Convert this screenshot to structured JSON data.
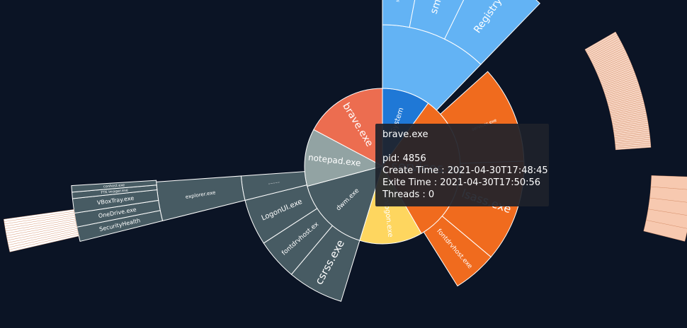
{
  "sunburst": {
    "nodes": [
      {
        "id": "system",
        "label": "System",
        "ring": 0,
        "a0": 0,
        "a1": 36,
        "color": "#1f78d6",
        "font": 10
      },
      {
        "id": "services",
        "label": "services.exe",
        "ring": 0,
        "a0": 36,
        "a1": 150,
        "color": "#f06b1e",
        "font": 18
      },
      {
        "id": "winlogon",
        "label": "winlogon.exe",
        "ring": 0,
        "a0": 150,
        "a1": 197,
        "color": "#fed65f",
        "font": 10
      },
      {
        "id": "dwm",
        "label": "dwm.exe",
        "ring": 0,
        "a0": 197,
        "a1": 255,
        "color": "#475b63",
        "font": 9
      },
      {
        "id": "notepad",
        "label": "notepad.exe",
        "ring": 0,
        "a0": 255,
        "a1": 298,
        "color": "#92a3a3",
        "font": 12
      },
      {
        "id": "brave",
        "label": "brave.exe",
        "ring": 0,
        "a0": 298,
        "a1": 360,
        "color": "#ec6d50",
        "font": 14
      },
      {
        "id": "sys_top",
        "label": "",
        "ring": 1,
        "a0": 0,
        "a1": 44,
        "color": "#63b3f4"
      },
      {
        "id": "svc_a",
        "label": "services.exe",
        "ring": 1,
        "a0": 48,
        "a1": 88,
        "color": "#f06b1e",
        "font": 6
      },
      {
        "id": "lsass",
        "label": "lsass.exe",
        "ring": 1,
        "a0": 88,
        "a1": 130,
        "color": "#f06b1e",
        "font": 16
      },
      {
        "id": "fontdrv1",
        "label": "fontdrvhost.exe",
        "ring": 1,
        "a0": 130,
        "a1": 148,
        "color": "#f06b1e",
        "font": 9
      },
      {
        "id": "dwm_c",
        "label": "csrss.exe",
        "ring": 1,
        "a0": 197,
        "a1": 220,
        "color": "#475b63",
        "font": 15
      },
      {
        "id": "fontdrv2",
        "label": "fontdrvhost.ex",
        "ring": 1,
        "a0": 220,
        "a1": 237,
        "color": "#475b63",
        "font": 9
      },
      {
        "id": "logonui",
        "label": "LogonUI.exe",
        "ring": 1,
        "a0": 237,
        "a1": 256,
        "color": "#475b63",
        "font": 10
      },
      {
        "id": "misc_x",
        "label": "~~~~~",
        "ring": 1,
        "a0": 256,
        "a1": 266,
        "color": "#475b63",
        "font": 4
      },
      {
        "id": "memcomp",
        "label": "MemCompression",
        "ring": 2,
        "a0": 0,
        "a1": 11,
        "color": "#63b3f4",
        "font": 6
      },
      {
        "id": "smss",
        "label": "smss.exe",
        "ring": 2,
        "a0": 11,
        "a1": 26,
        "color": "#63b3f4",
        "font": 14
      },
      {
        "id": "registry",
        "label": "Registry",
        "ring": 2,
        "a0": 26,
        "a1": 44,
        "color": "#63b3f4",
        "font": 14
      },
      {
        "id": "explorer",
        "label": "explorer.exe",
        "ring": 2,
        "a0": 256,
        "a1": 266,
        "color": "#475b63",
        "font": 7
      },
      {
        "id": "sechealth",
        "label": "SecurityHealth",
        "ring": 3,
        "a0": 256,
        "a1": 258.7,
        "color": "#475b63",
        "font": 8
      },
      {
        "id": "onedrive",
        "label": "OneDrive.exe",
        "ring": 3,
        "a0": 258.7,
        "a1": 261.3,
        "color": "#475b63",
        "font": 8
      },
      {
        "id": "vboxtray",
        "label": "VBoxTray.exe",
        "ring": 3,
        "a0": 261.3,
        "a1": 264,
        "color": "#475b63",
        "font": 8
      },
      {
        "id": "ftk",
        "label": "FTK Imager.exe",
        "ring": 3,
        "a0": 264,
        "a1": 265.2,
        "color": "#475b63",
        "font": 5
      },
      {
        "id": "conhost",
        "label": "conhost.exe",
        "ring": 3,
        "a0": 265.2,
        "a1": 266.4,
        "color": "#475b63",
        "font": 5
      }
    ]
  },
  "tooltip": {
    "name": "brave.exe",
    "pid": "pid: 4856",
    "create": "Create Time : 2021-04-30T17:48:45",
    "exit": "Exite Time : 2021-04-30T17:50:56",
    "threads": "Threads : 0"
  }
}
